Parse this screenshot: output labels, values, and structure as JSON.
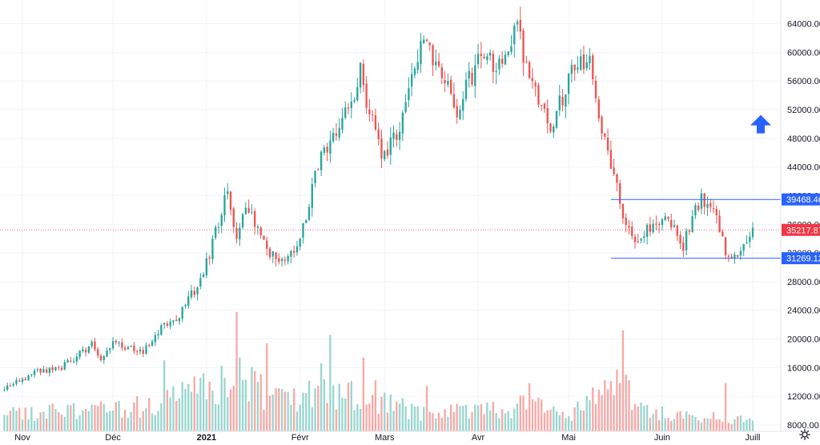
{
  "chart_data": {
    "type": "candlestick",
    "title": "",
    "xlabel": "",
    "ylabel": "",
    "ylim": [
      4600,
      66000
    ],
    "y_ticks": [
      "64000.00",
      "60000.00",
      "56000.00",
      "52000.00",
      "48000.00",
      "44000.00",
      "40000.00",
      "36000.00",
      "32000.00",
      "28000.00",
      "24000.00",
      "20000.00",
      "16000.00",
      "12000.00",
      "8000.00"
    ],
    "x_ticks": [
      {
        "label": "Nov",
        "date": "2020-11-01",
        "bold": false
      },
      {
        "label": "Déc",
        "date": "2020-12-01",
        "bold": false
      },
      {
        "label": "2021",
        "date": "2021-01-01",
        "bold": true
      },
      {
        "label": "Févr",
        "date": "2021-02-01",
        "bold": false
      },
      {
        "label": "Mars",
        "date": "2021-03-01",
        "bold": false
      },
      {
        "label": "Avr",
        "date": "2021-04-01",
        "bold": false
      },
      {
        "label": "Mai",
        "date": "2021-05-01",
        "bold": false
      },
      {
        "label": "Juin",
        "date": "2021-06-01",
        "bold": false
      },
      {
        "label": "Juill",
        "date": "2021-07-01",
        "bold": false
      }
    ],
    "price_close_anchors": [
      [
        "2020-10-26",
        13050
      ],
      [
        "2020-11-05",
        15300
      ],
      [
        "2020-11-14",
        16000
      ],
      [
        "2020-11-24",
        19200
      ],
      [
        "2020-11-27",
        17000
      ],
      [
        "2020-12-01",
        19400
      ],
      [
        "2020-12-11",
        18000
      ],
      [
        "2020-12-16",
        21200
      ],
      [
        "2020-12-23",
        23300
      ],
      [
        "2020-12-31",
        29000
      ],
      [
        "2021-01-08",
        41000
      ],
      [
        "2021-01-11",
        34000
      ],
      [
        "2021-01-14",
        39000
      ],
      [
        "2021-01-22",
        32000
      ],
      [
        "2021-01-27",
        31000
      ],
      [
        "2021-02-01",
        34000
      ],
      [
        "2021-02-08",
        46500
      ],
      [
        "2021-02-14",
        48700
      ],
      [
        "2021-02-21",
        57000
      ],
      [
        "2021-02-28",
        45000
      ],
      [
        "2021-03-06",
        49000
      ],
      [
        "2021-03-13",
        61000
      ],
      [
        "2021-03-21",
        57000
      ],
      [
        "2021-03-25",
        52000
      ],
      [
        "2021-04-01",
        59000
      ],
      [
        "2021-04-09",
        58000
      ],
      [
        "2021-04-14",
        63500
      ],
      [
        "2021-04-18",
        56000
      ],
      [
        "2021-04-25",
        49000
      ],
      [
        "2021-05-02",
        57800
      ],
      [
        "2021-05-08",
        58000
      ],
      [
        "2021-05-12",
        50000
      ],
      [
        "2021-05-19",
        37000
      ],
      [
        "2021-05-23",
        34000
      ],
      [
        "2021-05-29",
        36000
      ],
      [
        "2021-06-04",
        36500
      ],
      [
        "2021-06-08",
        33000
      ],
      [
        "2021-06-14",
        40000
      ],
      [
        "2021-06-18",
        38000
      ],
      [
        "2021-06-22",
        32500
      ],
      [
        "2021-06-26",
        31600
      ],
      [
        "2021-07-01",
        35200
      ]
    ],
    "volume_anchors": [
      [
        "2020-10-26",
        3000
      ],
      [
        "2020-11-10",
        3500
      ],
      [
        "2020-12-01",
        4000
      ],
      [
        "2020-12-15",
        4500
      ],
      [
        "2021-01-05",
        8000
      ],
      [
        "2021-01-12",
        9000
      ],
      [
        "2021-01-25",
        5500
      ],
      [
        "2021-02-10",
        7000
      ],
      [
        "2021-02-25",
        5500
      ],
      [
        "2021-03-15",
        3000
      ],
      [
        "2021-04-18",
        4500
      ],
      [
        "2021-05-01",
        3000
      ],
      [
        "2021-05-19",
        9000
      ],
      [
        "2021-05-25",
        3500
      ],
      [
        "2021-06-15",
        2500
      ],
      [
        "2021-07-01",
        1800
      ]
    ],
    "volume_spikes": [
      [
        "2020-12-18",
        12500
      ],
      [
        "2021-01-11",
        21000
      ],
      [
        "2021-01-12",
        13000
      ],
      [
        "2021-01-21",
        15500
      ],
      [
        "2021-02-08",
        12000
      ],
      [
        "2021-02-11",
        17000
      ],
      [
        "2021-02-22",
        13000
      ],
      [
        "2021-02-26",
        9000
      ],
      [
        "2021-03-15",
        8000
      ],
      [
        "2021-04-18",
        8500
      ],
      [
        "2021-05-19",
        17800
      ],
      [
        "2021-05-20",
        10000
      ],
      [
        "2021-05-21",
        9000
      ],
      [
        "2021-06-22",
        8500
      ]
    ],
    "horizontal_lines": [
      {
        "value": 39468.46,
        "label": "39468.46",
        "from": "2021-05-15",
        "color": "#2962ff"
      },
      {
        "value": 31269.12,
        "label": "31269.12",
        "from": "2021-05-15",
        "color": "#2962ff"
      }
    ],
    "last_price": {
      "value": 35217.87,
      "label": "35217.87",
      "color": "#f23645"
    },
    "annotation_arrow": {
      "direction": "up",
      "date": "2021-07-01",
      "price": 49800,
      "color": "#2962ff"
    },
    "up_color": "#26a69a",
    "down_color": "#ef5350",
    "grid": true,
    "legend": "none"
  },
  "icons": {
    "settings": "gear-icon"
  }
}
